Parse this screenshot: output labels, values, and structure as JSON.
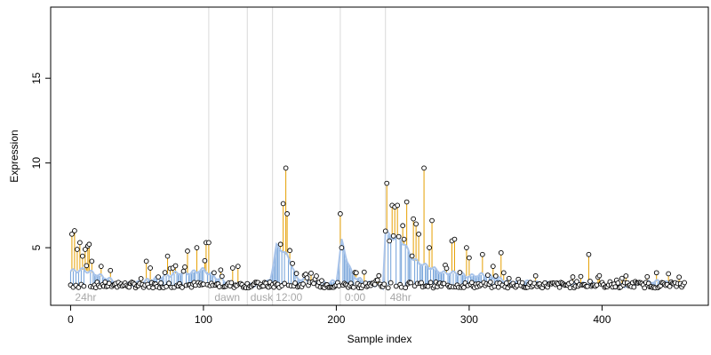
{
  "chart_data": {
    "type": "scatter",
    "title": "",
    "xlabel": "Sample index",
    "ylabel": "Expression",
    "xlim": [
      -15,
      480
    ],
    "ylim": [
      1.6,
      19.2
    ],
    "xticks": [
      0,
      100,
      200,
      300,
      400
    ],
    "yticks": [
      5,
      10,
      15
    ],
    "grid": false,
    "legend": "none",
    "colors": {
      "points_stroke": "#000000",
      "points_fill": "#ffffff",
      "bar_up": "#e69f00",
      "bar_down": "#6f9fd8",
      "smooth_line": "#a9c4ea",
      "smooth_line_low": "#c49b5c",
      "boundary": "#d9d9d9",
      "region_text": "#a8a8a8"
    },
    "boundaries": [
      104,
      133,
      152,
      203,
      237
    ],
    "regions": [
      {
        "label": "24hr",
        "x": 2
      },
      {
        "label": "dawn",
        "x": 107
      },
      {
        "label": "dusk",
        "x": 134
      },
      {
        "label": "12:00",
        "x": 153
      },
      {
        "label": "0:00",
        "x": 205
      },
      {
        "label": "48hr",
        "x": 239
      }
    ],
    "baseline": 2.8,
    "spikes": [
      {
        "x": 1,
        "y": 5.8
      },
      {
        "x": 3,
        "y": 6.0
      },
      {
        "x": 5,
        "y": 4.9
      },
      {
        "x": 7,
        "y": 5.3
      },
      {
        "x": 9,
        "y": 4.5
      },
      {
        "x": 11,
        "y": 4.9
      },
      {
        "x": 13,
        "y": 5.1
      },
      {
        "x": 14,
        "y": 5.2
      },
      {
        "x": 16,
        "y": 4.2
      },
      {
        "x": 23,
        "y": 3.9
      },
      {
        "x": 57,
        "y": 4.2
      },
      {
        "x": 60,
        "y": 3.8
      },
      {
        "x": 73,
        "y": 4.5
      },
      {
        "x": 77,
        "y": 3.8
      },
      {
        "x": 88,
        "y": 4.8
      },
      {
        "x": 95,
        "y": 5.0
      },
      {
        "x": 102,
        "y": 5.3
      },
      {
        "x": 104,
        "y": 5.3
      },
      {
        "x": 122,
        "y": 3.8
      },
      {
        "x": 126,
        "y": 3.9
      },
      {
        "x": 158,
        "y": 5.2
      },
      {
        "x": 160,
        "y": 7.6
      },
      {
        "x": 162,
        "y": 9.7
      },
      {
        "x": 163,
        "y": 7.0
      },
      {
        "x": 203,
        "y": 7.0
      },
      {
        "x": 204,
        "y": 5.0
      },
      {
        "x": 238,
        "y": 8.8
      },
      {
        "x": 240,
        "y": 5.4
      },
      {
        "x": 242,
        "y": 7.5
      },
      {
        "x": 244,
        "y": 7.4
      },
      {
        "x": 246,
        "y": 7.5
      },
      {
        "x": 250,
        "y": 6.3
      },
      {
        "x": 253,
        "y": 7.7
      },
      {
        "x": 258,
        "y": 6.7
      },
      {
        "x": 260,
        "y": 6.4
      },
      {
        "x": 262,
        "y": 5.8
      },
      {
        "x": 266,
        "y": 9.7
      },
      {
        "x": 270,
        "y": 5.0
      },
      {
        "x": 272,
        "y": 6.6
      },
      {
        "x": 287,
        "y": 5.4
      },
      {
        "x": 289,
        "y": 5.5
      },
      {
        "x": 298,
        "y": 5.0
      },
      {
        "x": 300,
        "y": 4.4
      },
      {
        "x": 310,
        "y": 4.6
      },
      {
        "x": 318,
        "y": 3.9
      },
      {
        "x": 324,
        "y": 4.7
      },
      {
        "x": 390,
        "y": 4.6
      }
    ],
    "smooth_line_points": [
      [
        0,
        3.6
      ],
      [
        10,
        3.7
      ],
      [
        20,
        3.4
      ],
      [
        30,
        3.1
      ],
      [
        40,
        2.8
      ],
      [
        50,
        2.9
      ],
      [
        60,
        3.1
      ],
      [
        70,
        3.3
      ],
      [
        80,
        3.5
      ],
      [
        90,
        3.5
      ],
      [
        100,
        3.7
      ],
      [
        110,
        3.2
      ],
      [
        120,
        2.9
      ],
      [
        130,
        2.8
      ],
      [
        140,
        2.8
      ],
      [
        150,
        3.0
      ],
      [
        155,
        5.1
      ],
      [
        160,
        4.8
      ],
      [
        165,
        4.3
      ],
      [
        170,
        3.2
      ],
      [
        180,
        3.0
      ],
      [
        190,
        2.9
      ],
      [
        200,
        3.0
      ],
      [
        204,
        5.4
      ],
      [
        208,
        4.3
      ],
      [
        212,
        3.4
      ],
      [
        220,
        3.0
      ],
      [
        230,
        2.8
      ],
      [
        235,
        2.7
      ],
      [
        237,
        5.9
      ],
      [
        242,
        5.6
      ],
      [
        248,
        5.5
      ],
      [
        252,
        5.1
      ],
      [
        258,
        4.3
      ],
      [
        265,
        4.0
      ],
      [
        272,
        3.8
      ],
      [
        280,
        3.5
      ],
      [
        290,
        3.5
      ],
      [
        300,
        3.3
      ],
      [
        310,
        3.4
      ],
      [
        320,
        3.2
      ],
      [
        330,
        3.0
      ],
      [
        340,
        3.0
      ],
      [
        350,
        2.9
      ],
      [
        360,
        2.9
      ],
      [
        370,
        2.8
      ],
      [
        380,
        2.8
      ],
      [
        390,
        2.9
      ],
      [
        400,
        2.8
      ],
      [
        410,
        2.7
      ],
      [
        420,
        2.8
      ],
      [
        430,
        2.9
      ],
      [
        440,
        3.0
      ],
      [
        450,
        2.9
      ],
      [
        460,
        2.8
      ]
    ]
  }
}
